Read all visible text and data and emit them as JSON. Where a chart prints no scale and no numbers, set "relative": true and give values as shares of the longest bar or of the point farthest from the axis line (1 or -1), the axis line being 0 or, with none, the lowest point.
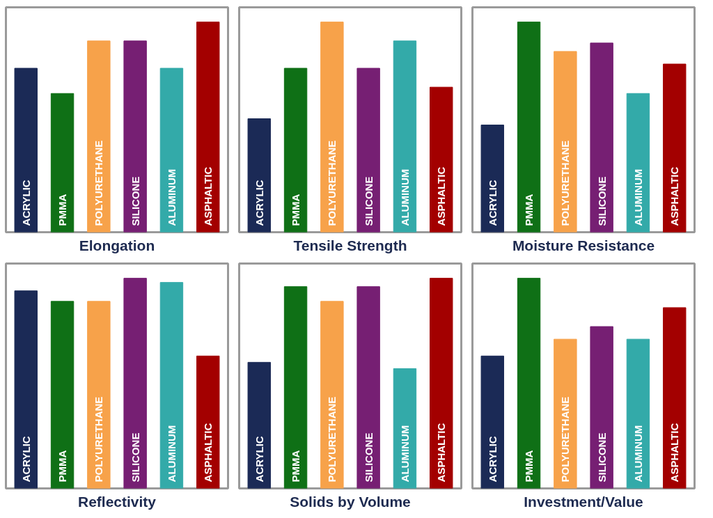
{
  "chart_data": [
    {
      "type": "bar",
      "title": "Elongation",
      "relative": true,
      "categories": [
        "ACRYLIC",
        "PMMA",
        "POLYURETHANE",
        "SILICONE",
        "ALUMINUM",
        "ASPHALTIC"
      ],
      "colors": [
        "#1b2a56",
        "#0f7016",
        "#f7a24a",
        "#761f73",
        "#33aaa9",
        "#a30000"
      ],
      "values": [
        0.78,
        0.66,
        0.91,
        0.91,
        0.78,
        1
      ]
    },
    {
      "type": "bar",
      "title": "Tensile Strength",
      "relative": true,
      "categories": [
        "ACRYLIC",
        "PMMA",
        "POLYURETHANE",
        "SILICONE",
        "ALUMINUM",
        "ASPHALTIC"
      ],
      "colors": [
        "#1b2a56",
        "#0f7016",
        "#f7a24a",
        "#761f73",
        "#33aaa9",
        "#a30000"
      ],
      "values": [
        0.54,
        0.78,
        1,
        0.78,
        0.91,
        0.69
      ]
    },
    {
      "type": "bar",
      "title": "Moisture Resistance",
      "relative": true,
      "categories": [
        "ACRYLIC",
        "PMMA",
        "POLYURETHANE",
        "SILICONE",
        "ALUMINUM",
        "ASPHALTIC"
      ],
      "colors": [
        "#1b2a56",
        "#0f7016",
        "#f7a24a",
        "#761f73",
        "#33aaa9",
        "#a30000"
      ],
      "values": [
        0.51,
        1,
        0.86,
        0.9,
        0.66,
        0.8
      ]
    },
    {
      "type": "bar",
      "title": "Reflectivity",
      "relative": true,
      "categories": [
        "ACRYLIC",
        "PMMA",
        "POLYURETHANE",
        "SILICONE",
        "ALUMINUM",
        "ASPHALTIC"
      ],
      "colors": [
        "#1b2a56",
        "#0f7016",
        "#f7a24a",
        "#761f73",
        "#33aaa9",
        "#a30000"
      ],
      "values": [
        0.94,
        0.89,
        0.89,
        1,
        0.98,
        0.63
      ]
    },
    {
      "type": "bar",
      "title": "Solids by Volume",
      "relative": true,
      "categories": [
        "ACRYLIC",
        "PMMA",
        "POLYURETHANE",
        "SILICONE",
        "ALUMINUM",
        "ASPHALTIC"
      ],
      "colors": [
        "#1b2a56",
        "#0f7016",
        "#f7a24a",
        "#761f73",
        "#33aaa9",
        "#a30000"
      ],
      "values": [
        0.6,
        0.96,
        0.89,
        0.96,
        0.57,
        1
      ]
    },
    {
      "type": "bar",
      "title": "Investment/Value",
      "relative": true,
      "categories": [
        "ACRYLIC",
        "PMMA",
        "POLYURETHANE",
        "SILICONE",
        "ALUMINUM",
        "ASPHALTIC"
      ],
      "colors": [
        "#1b2a56",
        "#0f7016",
        "#f7a24a",
        "#761f73",
        "#33aaa9",
        "#a30000"
      ],
      "values": [
        0.63,
        1,
        0.71,
        0.77,
        0.71,
        0.86
      ]
    }
  ]
}
